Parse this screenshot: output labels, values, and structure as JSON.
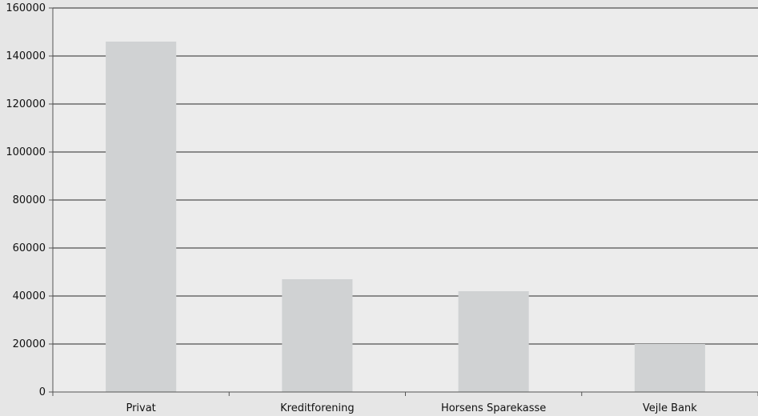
{
  "chart_data": {
    "type": "bar",
    "title": "",
    "xlabel": "",
    "ylabel": "",
    "categories": [
      "Privat",
      "Kreditforening",
      "Horsens Sparekasse",
      "Vejle Bank"
    ],
    "values": [
      146000,
      47000,
      42000,
      20000
    ],
    "ylim": [
      0,
      160000
    ],
    "yticks": [
      "0",
      "20000",
      "40000",
      "60000",
      "80000",
      "100000",
      "120000",
      "140000",
      "160000"
    ],
    "grid": true,
    "legend": "none",
    "colors": {
      "bar": "#d0d2d3",
      "plot_background": "#ececec",
      "gridline": "#2a2a2a",
      "axis": "#555555"
    }
  }
}
